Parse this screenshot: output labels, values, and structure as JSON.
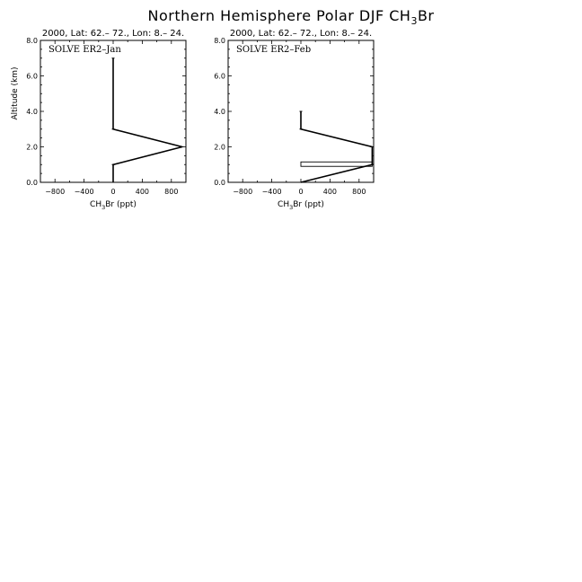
{
  "figure": {
    "title": "Northern Hemisphere Polar DJF CH",
    "title_sub": "3",
    "title_tail": "Br"
  },
  "chart_data": [
    {
      "type": "line",
      "header": "2000, Lat: 62.– 72., Lon: 8.– 24.",
      "panel_label": "SOLVE ER2–Jan",
      "xlabel": "CH",
      "xlabel_sub": "3",
      "xlabel_tail": "Br (ppt)",
      "ylabel": "Altitude (km)",
      "xlim": [
        -1000,
        1000
      ],
      "ylim": [
        0,
        8
      ],
      "xticks": [
        -800,
        -400,
        0,
        400,
        800
      ],
      "xtick_labels": [
        "−800",
        "−400",
        "0",
        "400",
        "800"
      ],
      "yticks": [
        0,
        2,
        4,
        6,
        8
      ],
      "ytick_labels": [
        "0.0",
        "2.0",
        "4.0",
        "6.0",
        "8.0"
      ],
      "series": [
        {
          "points": [
            [
              0,
              0
            ],
            [
              0,
              1
            ],
            [
              950,
              2
            ],
            [
              0,
              3
            ],
            [
              0,
              7
            ]
          ]
        }
      ]
    },
    {
      "type": "line",
      "header": "2000, Lat: 62.– 72., Lon: 8.– 24.",
      "panel_label": "SOLVE ER2–Feb",
      "xlabel": "CH",
      "xlabel_sub": "3",
      "xlabel_tail": "Br (ppt)",
      "ylabel": "",
      "xlim": [
        -1000,
        1000
      ],
      "ylim": [
        0,
        8
      ],
      "xticks": [
        -800,
        -400,
        0,
        400,
        800
      ],
      "xtick_labels": [
        "−800",
        "−400",
        "0",
        "400",
        "800"
      ],
      "yticks": [
        0,
        2,
        4,
        6,
        8
      ],
      "ytick_labels": [
        "0.0",
        "2.0",
        "4.0",
        "6.0",
        "8.0"
      ],
      "series": [
        {
          "points": [
            [
              0,
              0
            ],
            [
              980,
              1
            ],
            [
              980,
              2
            ],
            [
              0,
              3
            ],
            [
              0,
              4
            ]
          ]
        }
      ],
      "bars": [
        {
          "x0": 0,
          "x1": 980,
          "y0": 0.9,
          "y1": 1.15
        }
      ]
    }
  ]
}
